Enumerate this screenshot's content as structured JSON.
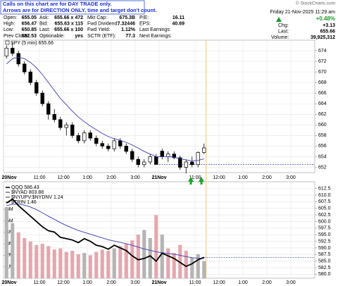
{
  "notice": [
    "Calls on this chart are for DAY TRADE only.",
    "Arrows are for DIRECTION ONLY, time and target don't count."
  ],
  "watermark": "© StockCharts.com",
  "quote": {
    "rows": [
      [
        [
          "Open:",
          "655.05"
        ],
        [
          "Ask:",
          "655.66 x 472"
        ],
        [
          "Mkt Cap:",
          "675.3B"
        ],
        [
          "P/E:",
          "16.11"
        ]
      ],
      [
        [
          "High:",
          "656.47"
        ],
        [
          "Bid:",
          "655.63 x 115"
        ],
        [
          "Fwd Dividend:",
          "7.32446"
        ],
        [
          "EPS:",
          "40.69"
        ]
      ],
      [
        [
          "Low:",
          "650.85"
        ],
        [
          "Last:",
          "655.66 x 100"
        ],
        [
          "Fwd Yield:",
          "1.12%"
        ],
        [
          "Last Earnings:",
          ""
        ]
      ],
      [
        [
          "Prev Close:",
          "652.53"
        ],
        [
          "Optionable:",
          "yes"
        ],
        [
          "SCTR (ETF):",
          "77.3"
        ],
        [
          "Next Earnings:",
          ""
        ]
      ]
    ]
  },
  "status": {
    "date": "Friday 21-Nov-2025 11:29 am",
    "change_pct": "+0.48%",
    "items": [
      [
        "Chg:",
        "+3.13"
      ],
      [
        "Last:",
        "655.66"
      ],
      [
        "Volume:",
        "39,925,312"
      ]
    ]
  },
  "chart_data": [
    {
      "type": "candlestick",
      "legend": "SPY (5 min) 655.66",
      "xlim": [
        0,
        52
      ],
      "xticks": [
        {
          "value": 0,
          "label": "20Nov"
        },
        {
          "value": 6,
          "label": "11:00"
        },
        {
          "value": 10,
          "label": "12:00"
        },
        {
          "value": 14,
          "label": "1:00"
        },
        {
          "value": 18,
          "label": "2:00"
        },
        {
          "value": 22,
          "label": "3:00"
        },
        {
          "value": 26,
          "label": "21Nov"
        },
        {
          "value": 32,
          "label": "11:00"
        },
        {
          "value": 36,
          "label": "12:00"
        },
        {
          "value": 40,
          "label": "1:00"
        },
        {
          "value": 44,
          "label": "2:00"
        },
        {
          "value": 48,
          "label": "3:00"
        }
      ],
      "ylim": [
        651,
        676
      ],
      "yticks": [
        652,
        654,
        656,
        658,
        660,
        662,
        664,
        666,
        668,
        670,
        672,
        674
      ],
      "grid": true,
      "up_fill": "#ffffff",
      "down_fill": "#000000",
      "open": [
        673.0,
        674.5,
        673.5,
        671.5,
        670.0,
        668.0,
        666.0,
        664.0,
        662.0,
        661.0,
        659.5,
        660.0,
        658.0,
        657.0,
        658.5,
        657.5,
        656.5,
        656.0,
        655.5,
        657.0,
        656.0,
        655.0,
        653.5,
        652.5,
        653.0,
        654.0,
        655.05,
        654.0,
        654.5,
        653.8,
        652.0,
        653.0,
        652.5,
        654.8
      ],
      "high": [
        675.0,
        675.5,
        674.0,
        672.0,
        670.5,
        668.5,
        666.5,
        664.5,
        663.0,
        661.5,
        660.5,
        660.5,
        658.5,
        659.0,
        659.0,
        658.0,
        657.0,
        656.5,
        657.5,
        657.5,
        656.5,
        655.5,
        654.0,
        653.5,
        654.5,
        654.5,
        655.5,
        655.0,
        655.0,
        654.2,
        653.5,
        654.0,
        655.0,
        656.47
      ],
      "low": [
        672.5,
        673.0,
        671.0,
        669.5,
        667.5,
        665.5,
        663.5,
        661.0,
        660.5,
        659.0,
        658.0,
        657.5,
        656.5,
        656.5,
        657.0,
        656.0,
        655.5,
        655.0,
        655.0,
        655.5,
        654.5,
        653.0,
        652.0,
        652.0,
        652.5,
        652.5,
        653.5,
        653.0,
        653.5,
        651.5,
        650.85,
        652.0,
        652.0,
        654.5
      ],
      "close": [
        674.5,
        673.5,
        671.5,
        670.0,
        668.0,
        666.0,
        664.0,
        662.0,
        661.0,
        659.5,
        660.0,
        658.0,
        657.0,
        658.5,
        657.5,
        656.5,
        656.0,
        655.5,
        657.0,
        656.0,
        655.0,
        653.5,
        652.5,
        653.0,
        654.0,
        652.53,
        654.0,
        654.5,
        653.8,
        652.0,
        653.0,
        652.5,
        654.8,
        655.66
      ],
      "ma": {
        "color": "#3a3ab4",
        "values": [
          671.5,
          672.5,
          672.8,
          672.5,
          671.8,
          670.8,
          669.5,
          668.0,
          666.5,
          665.0,
          663.8,
          662.6,
          661.5,
          660.6,
          659.8,
          659.1,
          658.4,
          657.8,
          657.4,
          657.1,
          656.7,
          656.2,
          655.6,
          655.0,
          654.5,
          654.0,
          654.0,
          654.0,
          653.9,
          653.6,
          653.4,
          653.2,
          653.3,
          653.6
        ]
      },
      "prev_close": {
        "value": 652.53,
        "color": "#2a3aa0"
      }
    },
    {
      "type": "line-volume",
      "legend_extra": [
        "$NYAD 803.88",
        "$NYUPV:$NYDNV 1.24",
        "$TRIN 1.46"
      ],
      "xlim": [
        0,
        52
      ],
      "xticks": [
        {
          "value": 0,
          "label": "20Nov"
        },
        {
          "value": 6,
          "label": "11:00"
        },
        {
          "value": 10,
          "label": "12:00"
        },
        {
          "value": 14,
          "label": "1:00"
        },
        {
          "value": 18,
          "label": "2:00"
        },
        {
          "value": 22,
          "label": "3:00"
        },
        {
          "value": 26,
          "label": "21Nov"
        },
        {
          "value": 32,
          "label": "11:00"
        },
        {
          "value": 36,
          "label": "12:00"
        },
        {
          "value": 40,
          "label": "1:00"
        },
        {
          "value": 44,
          "label": "2:00"
        },
        {
          "value": 48,
          "label": "3:00"
        }
      ],
      "ylim": [
        0,
        8.16
      ],
      "yticks": [
        {
          "value": 1,
          "label": "1M"
        },
        {
          "value": 2,
          "label": "2M"
        },
        {
          "value": 3,
          "label": "3M"
        },
        {
          "value": 4,
          "label": "4M"
        },
        {
          "value": 5,
          "label": "5M"
        },
        {
          "value": 6,
          "label": "6M"
        }
      ],
      "y2lim": [
        578.5,
        614
      ],
      "y2ticks": [
        {
          "value": 580,
          "label": "580.0"
        },
        582.5,
        {
          "value": 585,
          "label": "585.0"
        },
        587.5,
        {
          "value": 590,
          "label": "590.0"
        },
        592.5,
        {
          "value": 595,
          "label": "595.0"
        },
        597.5,
        {
          "value": 600,
          "label": "600.0"
        },
        602.5,
        {
          "value": 605,
          "label": "605.0"
        },
        607.5,
        {
          "value": 610,
          "label": "610.0"
        },
        612.5
      ],
      "grid": true,
      "series": [
        {
          "name": "QQQ 586.43",
          "color": "#000000",
          "axis": "y2",
          "values": [
            607,
            608.5,
            606,
            604,
            602,
            600,
            598,
            596.5,
            596,
            594,
            593.5,
            593,
            592,
            593.5,
            592.5,
            591,
            590.5,
            589.5,
            591,
            590,
            589,
            587,
            585.5,
            586,
            587,
            585,
            588,
            587,
            586,
            584.5,
            583,
            584,
            585.5,
            586.43
          ]
        }
      ],
      "ma": {
        "color": "#3a3ab4",
        "values": [
          606,
          606.5,
          606.6,
          606.2,
          605.5,
          604.5,
          603.3,
          602,
          600.8,
          599.6,
          598.5,
          597.5,
          596.6,
          595.9,
          595.2,
          594.5,
          593.8,
          593.1,
          592.6,
          592.1,
          591.6,
          591,
          590.3,
          589.6,
          589.1,
          588.5,
          588.2,
          587.9,
          587.6,
          587.2,
          586.7,
          586.3,
          586.1,
          586.0
        ]
      },
      "volume": {
        "up_color": "#b4b4b4",
        "down_color": "#e6a6ae",
        "values": [
          6.2,
          4.8,
          4.0,
          3.5,
          3.2,
          2.9,
          3.0,
          2.8,
          2.5,
          2.6,
          2.3,
          2.4,
          2.1,
          2.2,
          2.0,
          2.3,
          2.5,
          2.4,
          2.6,
          2.8,
          3.0,
          3.3,
          3.8,
          4.2,
          3.5,
          5.5,
          3.8,
          2.6,
          2.2,
          2.9,
          2.4,
          1.8,
          2.1,
          1.5
        ]
      }
    }
  ]
}
